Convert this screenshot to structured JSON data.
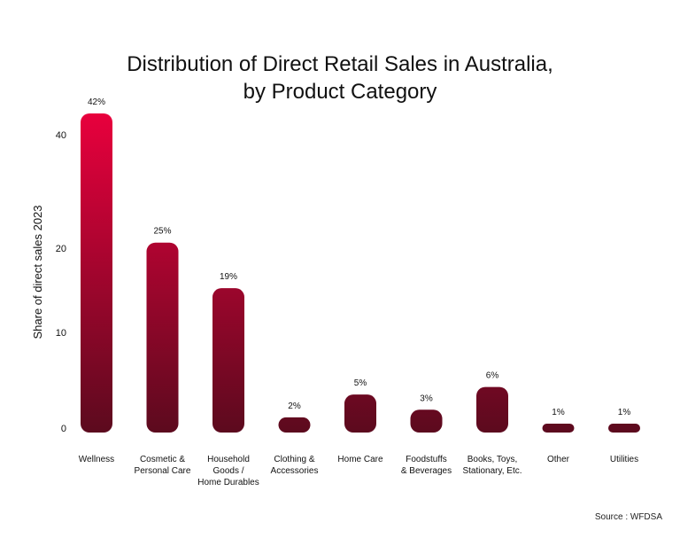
{
  "chart_data": {
    "type": "bar",
    "title_lines": [
      "Distribution of Direct Retail Sales in Australia,",
      "by Product Category"
    ],
    "ylabel": "Share of direct sales 2023",
    "xlabel": "",
    "y_ticks": [
      "0",
      "10",
      "20",
      "40"
    ],
    "categories": [
      [
        "Wellness"
      ],
      [
        "Cosmetic &",
        "Personal Care"
      ],
      [
        "Household",
        "Goods /",
        "Home Durables"
      ],
      [
        "Clothing &",
        "Accessories"
      ],
      [
        "Home Care"
      ],
      [
        "Foodstuffs",
        "& Beverages"
      ],
      [
        "Books, Toys,",
        "Stationary, Etc."
      ],
      [
        "Other"
      ],
      [
        "Utilities"
      ]
    ],
    "values": [
      42,
      25,
      19,
      2,
      5,
      3,
      6,
      1,
      1
    ],
    "data_labels": [
      "42%",
      "25%",
      "19%",
      "2%",
      "5%",
      "3%",
      "6%",
      "1%",
      "1%"
    ],
    "ylim": [
      0,
      42
    ],
    "grid": false,
    "legend": "none",
    "colors": {
      "top": "#e8003d",
      "bottom": "#5c0a1e"
    }
  },
  "source": "Source : WFDSA"
}
